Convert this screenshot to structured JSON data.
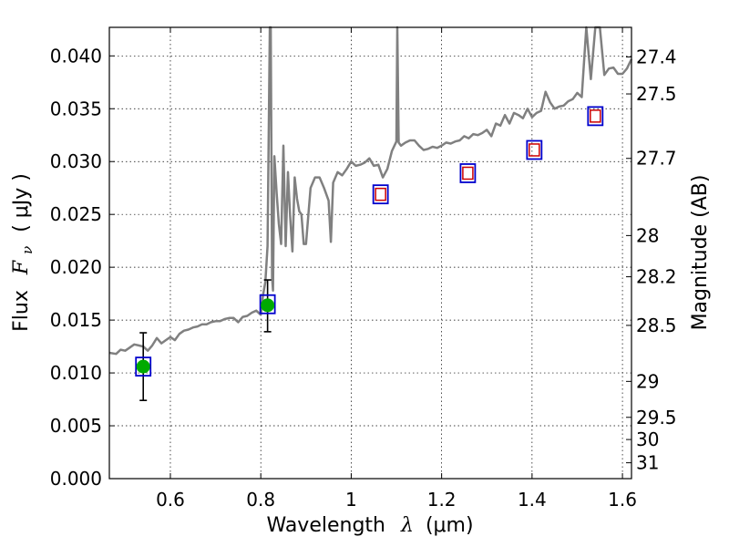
{
  "chart_data": {
    "type": "scatter",
    "xlabel_text": "Wavelength",
    "xlabel_symbol": "λ",
    "xlabel_unit": "(μm)",
    "ylabel_text": "Flux",
    "ylabel_symbol": "F",
    "ylabel_subscript": "ν",
    "ylabel_unit": "( μJy )",
    "y2label": "Magnitude (AB)",
    "xlim": [
      0.465,
      1.62
    ],
    "ylim": [
      0.0,
      0.0427
    ],
    "grid": true,
    "x_ticks": [
      0.6,
      0.8,
      1.0,
      1.2,
      1.4,
      1.6
    ],
    "x_tick_labels": [
      "0.6",
      "0.8",
      "1",
      "1.2",
      "1.4",
      "1.6"
    ],
    "y_ticks": [
      0.0,
      0.005,
      0.01,
      0.015,
      0.02,
      0.025,
      0.03,
      0.035,
      0.04
    ],
    "y_tick_labels": [
      "0.000",
      "0.005",
      "0.010",
      "0.015",
      "0.020",
      "0.025",
      "0.030",
      "0.035",
      "0.040"
    ],
    "magnitude_ticks": [
      {
        "label": "27.4",
        "flux": 0.0399
      },
      {
        "label": "27.5",
        "flux": 0.0364
      },
      {
        "label": "27.7",
        "flux": 0.0303
      },
      {
        "label": "28",
        "flux": 0.023
      },
      {
        "label": "28.2",
        "flux": 0.0191
      },
      {
        "label": "28.5",
        "flux": 0.0145
      },
      {
        "label": "29",
        "flux": 0.0092
      },
      {
        "label": "29.5",
        "flux": 0.0058
      },
      {
        "label": "30",
        "flux": 0.0037
      },
      {
        "label": "31",
        "flux": 0.0015
      }
    ],
    "series": [
      {
        "name": "model spectrum",
        "kind": "line",
        "color": "#808080",
        "x": [
          0.465,
          0.48,
          0.49,
          0.5,
          0.51,
          0.52,
          0.53,
          0.54,
          0.55,
          0.56,
          0.57,
          0.58,
          0.59,
          0.6,
          0.61,
          0.62,
          0.63,
          0.64,
          0.65,
          0.66,
          0.67,
          0.68,
          0.69,
          0.7,
          0.71,
          0.72,
          0.73,
          0.74,
          0.75,
          0.76,
          0.77,
          0.78,
          0.79,
          0.8,
          0.805,
          0.81,
          0.815,
          0.82,
          0.822,
          0.825,
          0.827,
          0.83,
          0.835,
          0.84,
          0.845,
          0.85,
          0.855,
          0.86,
          0.865,
          0.87,
          0.875,
          0.88,
          0.885,
          0.89,
          0.895,
          0.9,
          0.91,
          0.92,
          0.93,
          0.94,
          0.95,
          0.955,
          0.96,
          0.97,
          0.98,
          0.99,
          1.0,
          1.01,
          1.02,
          1.03,
          1.04,
          1.05,
          1.06,
          1.07,
          1.08,
          1.09,
          1.1,
          1.102,
          1.105,
          1.11,
          1.12,
          1.13,
          1.14,
          1.15,
          1.16,
          1.17,
          1.18,
          1.19,
          1.2,
          1.21,
          1.22,
          1.23,
          1.24,
          1.25,
          1.26,
          1.27,
          1.28,
          1.29,
          1.3,
          1.31,
          1.32,
          1.33,
          1.34,
          1.35,
          1.36,
          1.37,
          1.38,
          1.39,
          1.4,
          1.41,
          1.42,
          1.43,
          1.44,
          1.45,
          1.46,
          1.47,
          1.48,
          1.49,
          1.5,
          1.51,
          1.52,
          1.53,
          1.54,
          1.55,
          1.56,
          1.57,
          1.58,
          1.59,
          1.6,
          1.61,
          1.62
        ],
        "y": [
          0.0119,
          0.0118,
          0.0122,
          0.0121,
          0.0124,
          0.0127,
          0.0126,
          0.0125,
          0.0121,
          0.0126,
          0.0133,
          0.0128,
          0.0131,
          0.0134,
          0.0131,
          0.0137,
          0.014,
          0.0141,
          0.0143,
          0.0144,
          0.0146,
          0.0146,
          0.0148,
          0.0149,
          0.0149,
          0.0151,
          0.0152,
          0.0152,
          0.0148,
          0.0153,
          0.0154,
          0.0157,
          0.0159,
          0.0155,
          0.0174,
          0.0186,
          0.022,
          0.0427,
          0.0427,
          0.019,
          0.0178,
          0.0305,
          0.027,
          0.0241,
          0.0222,
          0.0315,
          0.022,
          0.029,
          0.0248,
          0.0215,
          0.0285,
          0.0265,
          0.0253,
          0.025,
          0.0222,
          0.0222,
          0.0275,
          0.0285,
          0.0285,
          0.0275,
          0.0263,
          0.0224,
          0.028,
          0.029,
          0.0287,
          0.0293,
          0.03,
          0.0296,
          0.0297,
          0.0299,
          0.0303,
          0.0296,
          0.0297,
          0.0285,
          0.0293,
          0.031,
          0.0319,
          0.0427,
          0.0318,
          0.0315,
          0.0318,
          0.032,
          0.032,
          0.0315,
          0.0311,
          0.0312,
          0.0314,
          0.0313,
          0.0315,
          0.0318,
          0.0317,
          0.0319,
          0.032,
          0.0324,
          0.0322,
          0.0326,
          0.0325,
          0.0327,
          0.033,
          0.0324,
          0.0336,
          0.0334,
          0.0344,
          0.0336,
          0.0346,
          0.0344,
          0.0341,
          0.035,
          0.0342,
          0.0346,
          0.0348,
          0.0366,
          0.0356,
          0.035,
          0.0352,
          0.0353,
          0.0357,
          0.0359,
          0.0365,
          0.0361,
          0.0427,
          0.0378,
          0.0427,
          0.0427,
          0.0382,
          0.0388,
          0.0389,
          0.0383,
          0.0383,
          0.0388,
          0.0397
        ]
      },
      {
        "name": "observed photometry",
        "kind": "points",
        "color": "#00aa00",
        "points": [
          {
            "x": 0.54,
            "y": 0.0106,
            "err_low": 0.0032,
            "err_high": 0.0032
          },
          {
            "x": 0.815,
            "y": 0.0164,
            "err_low": 0.0025,
            "err_high": 0.0024
          }
        ]
      },
      {
        "name": "model photometry (blue squares)",
        "kind": "squares",
        "color": "#0000cc",
        "points": [
          {
            "x": 0.54,
            "y": 0.0106
          },
          {
            "x": 0.815,
            "y": 0.0165
          },
          {
            "x": 1.065,
            "y": 0.0269
          },
          {
            "x": 1.258,
            "y": 0.0289
          },
          {
            "x": 1.405,
            "y": 0.0311
          },
          {
            "x": 1.54,
            "y": 0.0343
          }
        ]
      },
      {
        "name": "model photometry (red squares)",
        "kind": "squares",
        "color": "#cc0000",
        "points": [
          {
            "x": 1.065,
            "y": 0.0269
          },
          {
            "x": 1.258,
            "y": 0.0289
          },
          {
            "x": 1.405,
            "y": 0.0311
          },
          {
            "x": 1.54,
            "y": 0.0343
          }
        ]
      }
    ]
  }
}
